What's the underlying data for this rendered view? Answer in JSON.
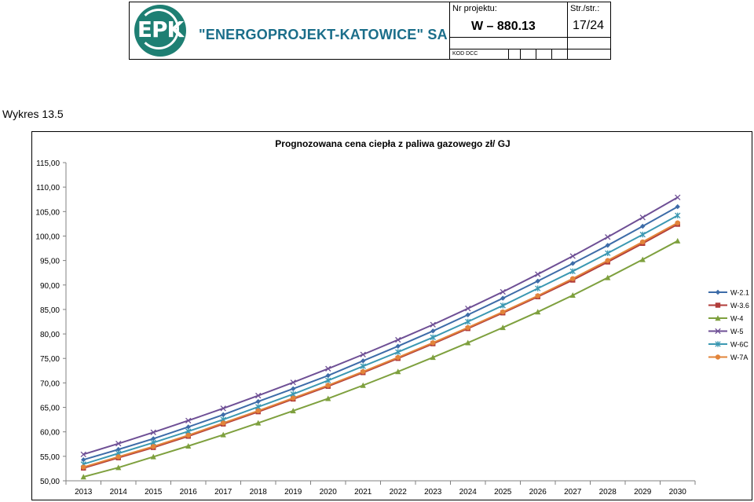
{
  "header": {
    "logo_text": "EPK",
    "company": "\"ENERGOPROJEKT-KATOWICE\" SA",
    "project_label": "Nr projektu:",
    "project_number": "W – 880.13",
    "page_label": "Str./str.:",
    "page_number": "17/24",
    "kod_label": "KOD DCC"
  },
  "caption": "Wykres 13.5",
  "chart_data": {
    "type": "line",
    "title": "Prognozowana cena ciepła z paliwa gazowego zł/ GJ",
    "xlabel": "",
    "ylabel": "",
    "ylim": [
      50,
      115
    ],
    "yticks": [
      "50,00",
      "55,00",
      "60,00",
      "65,00",
      "70,00",
      "75,00",
      "80,00",
      "85,00",
      "90,00",
      "95,00",
      "100,00",
      "105,00",
      "110,00",
      "115,00"
    ],
    "categories": [
      "2013",
      "2014",
      "2015",
      "2016",
      "2017",
      "2018",
      "2019",
      "2020",
      "2021",
      "2022",
      "2023",
      "2024",
      "2025",
      "2026",
      "2027",
      "2028",
      "2029",
      "2030"
    ],
    "legend_position": "right",
    "series": [
      {
        "name": "W-2.1",
        "color": "#3d6ca8",
        "marker": "diamond",
        "values": [
          54.3,
          56.4,
          58.6,
          61.0,
          63.5,
          66.2,
          68.8,
          71.5,
          74.5,
          77.5,
          80.6,
          83.9,
          87.3,
          90.8,
          94.4,
          98.1,
          102.0,
          106.0
        ]
      },
      {
        "name": "W-3.6",
        "color": "#b13c3a",
        "marker": "square",
        "values": [
          52.6,
          54.7,
          56.8,
          59.1,
          61.6,
          64.1,
          66.7,
          69.3,
          72.1,
          75.0,
          78.0,
          81.1,
          84.3,
          87.6,
          91.0,
          94.7,
          98.5,
          102.4
        ]
      },
      {
        "name": "W-4",
        "color": "#7ea03e",
        "marker": "triangle",
        "values": [
          50.8,
          52.7,
          54.9,
          57.1,
          59.4,
          61.8,
          64.3,
          66.8,
          69.5,
          72.3,
          75.2,
          78.2,
          81.3,
          84.5,
          87.9,
          91.5,
          95.2,
          99.0
        ]
      },
      {
        "name": "W-5",
        "color": "#6e4f95",
        "marker": "x",
        "values": [
          55.4,
          57.6,
          59.9,
          62.3,
          64.8,
          67.4,
          70.1,
          72.9,
          75.8,
          78.8,
          81.9,
          85.2,
          88.6,
          92.2,
          95.9,
          99.8,
          103.8,
          107.9
        ]
      },
      {
        "name": "W-6C",
        "color": "#3b98b2",
        "marker": "star",
        "values": [
          53.4,
          55.6,
          57.8,
          60.1,
          62.5,
          65.1,
          67.7,
          70.5,
          73.4,
          76.3,
          79.3,
          82.5,
          85.8,
          89.3,
          92.8,
          96.5,
          100.3,
          104.2
        ]
      },
      {
        "name": "W-7A",
        "color": "#e2843a",
        "marker": "circle",
        "values": [
          52.8,
          54.9,
          57.0,
          59.3,
          61.8,
          64.3,
          66.9,
          69.5,
          72.3,
          75.2,
          78.2,
          81.3,
          84.5,
          87.8,
          91.3,
          95.0,
          98.8,
          102.7
        ]
      }
    ]
  }
}
